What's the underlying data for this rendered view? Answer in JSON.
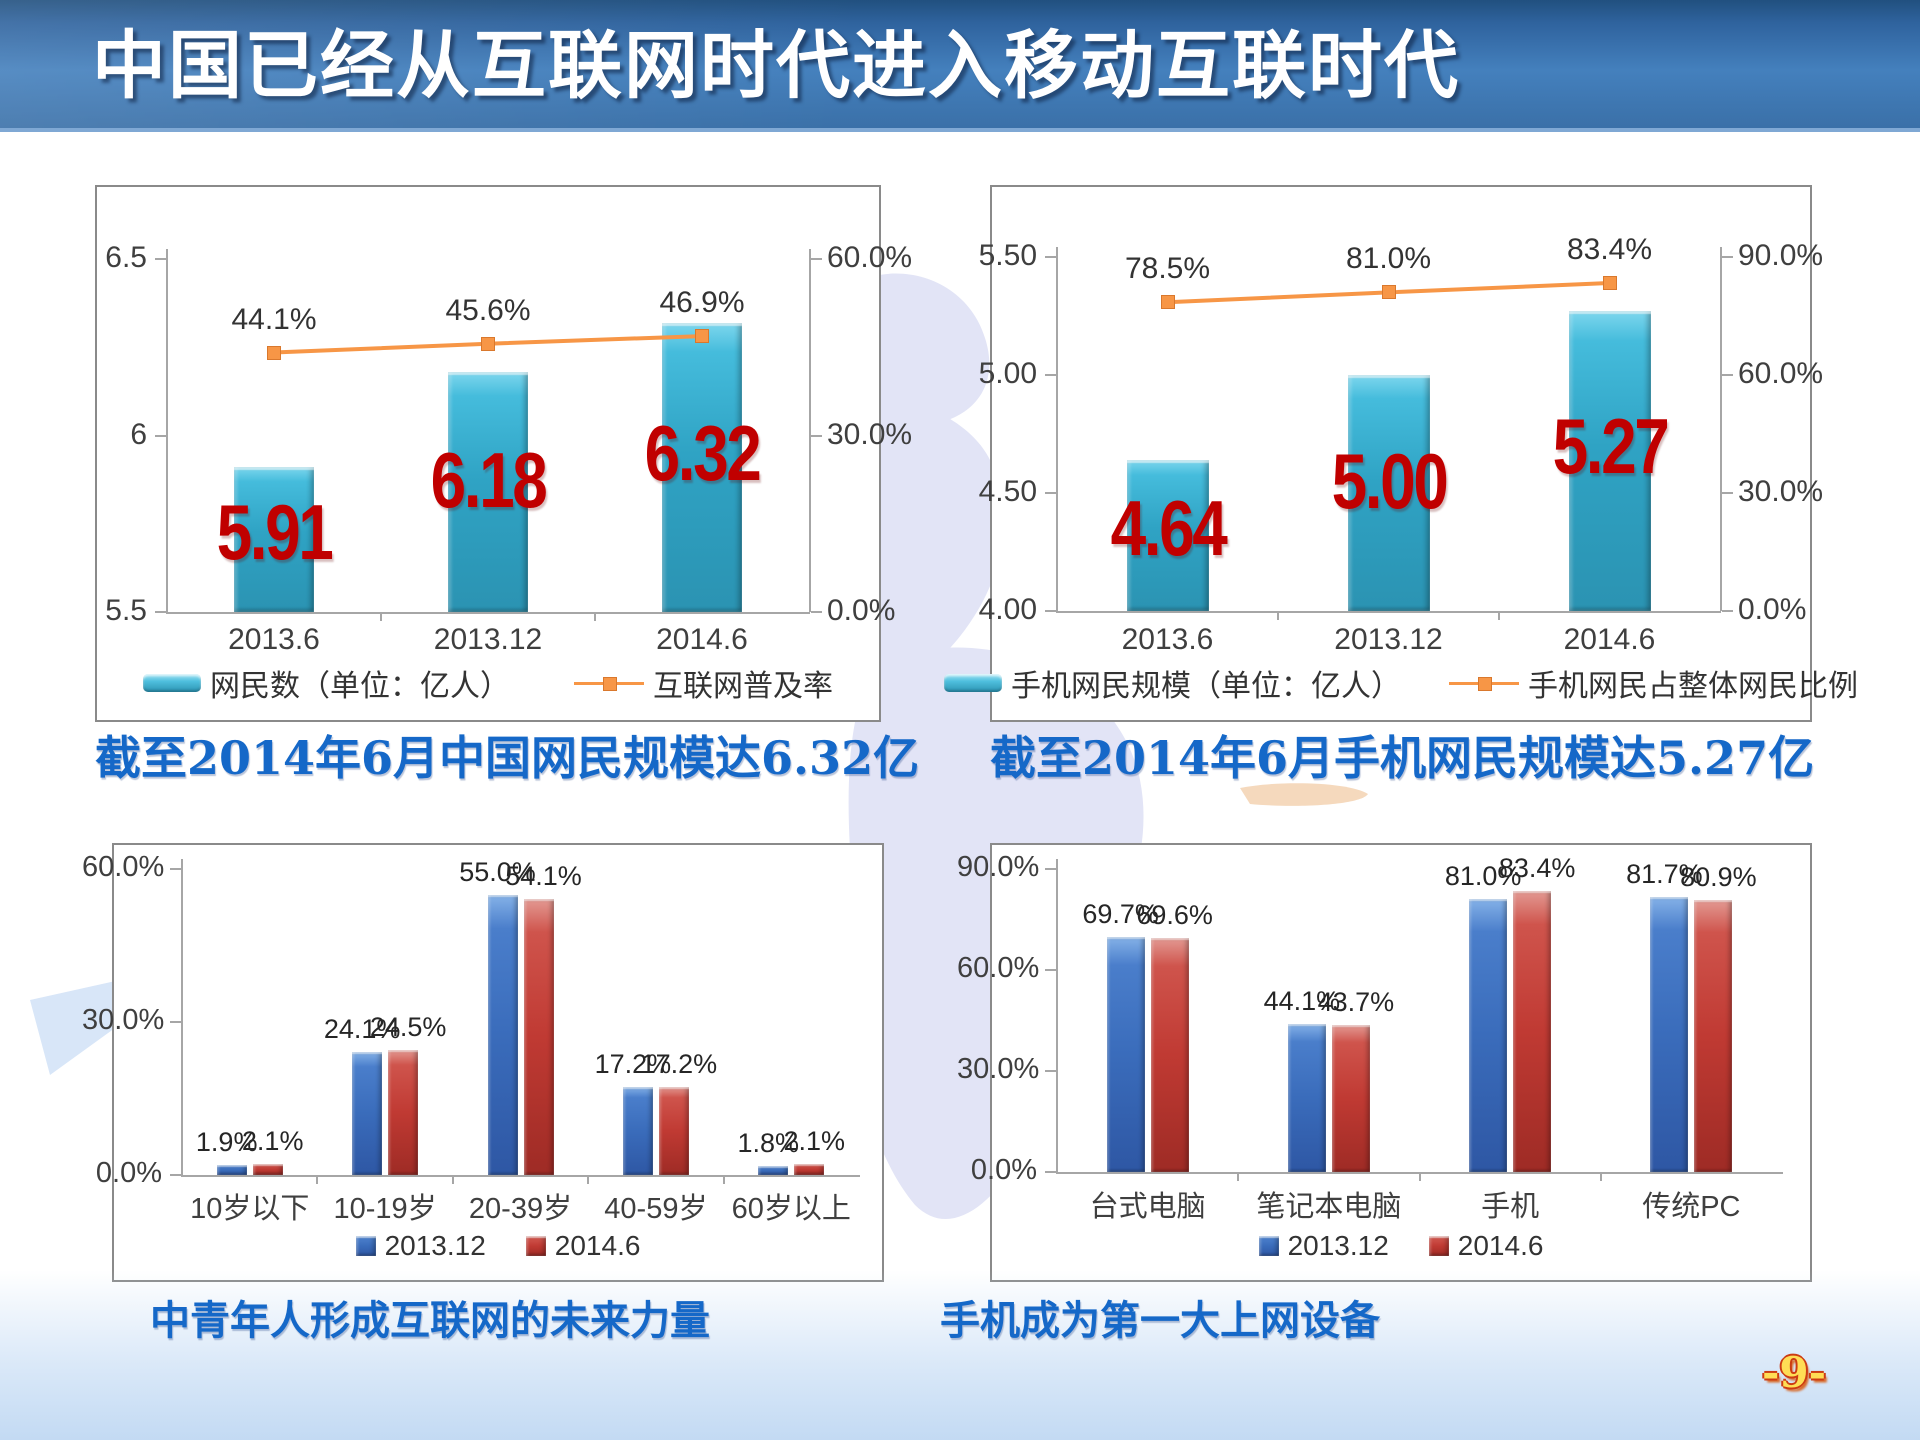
{
  "title_banner": {
    "text": "中国已经从互联网时代进入移动互联时代"
  },
  "page_number": "-9-",
  "colors": {
    "banner_blue": "#3a70a8",
    "teal_bar": "#2fa3c4",
    "orange_line": "#f79646",
    "blue_bar": "#3a6cbb",
    "red_bar": "#c03a33",
    "big_number_red": "#c00000",
    "caption_blue": "#1568c8",
    "page_number_yellow": "#ffdd55"
  },
  "chart_data": [
    {
      "id": "netizens",
      "type": "bar-line",
      "title_caption": "截至2014年6月中国网民规模达6.32亿",
      "categories": [
        "2013.6",
        "2013.12",
        "2014.6"
      ],
      "bar_series": {
        "name": "网民数（单位：亿人）",
        "values": [
          5.91,
          6.18,
          6.32
        ],
        "labels": [
          "5.91",
          "6.18",
          "6.32"
        ]
      },
      "line_series": {
        "name": "互联网普及率",
        "values": [
          44.1,
          45.6,
          46.9
        ],
        "labels": [
          "44.1%",
          "45.6%",
          "46.9%"
        ]
      },
      "left_axis": {
        "min": 5.5,
        "max": 6.5,
        "ticks": [
          [
            "6.5",
            6.5
          ],
          [
            "6",
            6.0
          ],
          [
            "5.5",
            5.5
          ]
        ]
      },
      "right_axis": {
        "min": 0,
        "max": 60,
        "ticks": [
          [
            "60.0%",
            60
          ],
          [
            "30.0%",
            30
          ],
          [
            "0.0%",
            0
          ]
        ]
      }
    },
    {
      "id": "mobile",
      "type": "bar-line",
      "title_caption": "截至2014年6月手机网民规模达5.27亿",
      "categories": [
        "2013.6",
        "2013.12",
        "2014.6"
      ],
      "bar_series": {
        "name": "手机网民规模（单位：亿人）",
        "values": [
          4.64,
          5.0,
          5.27
        ],
        "labels": [
          "4.64",
          "5.00",
          "5.27"
        ]
      },
      "line_series": {
        "name": "手机网民占整体网民比例",
        "values": [
          78.5,
          81.0,
          83.4
        ],
        "labels": [
          "78.5%",
          "81.0%",
          "83.4%"
        ]
      },
      "left_axis": {
        "min": 4.0,
        "max": 5.5,
        "ticks": [
          [
            "5.50",
            5.5
          ],
          [
            "5.00",
            5.0
          ],
          [
            "4.50",
            4.5
          ],
          [
            "4.00",
            4.0
          ]
        ]
      },
      "right_axis": {
        "min": 0,
        "max": 90,
        "ticks": [
          [
            "90.0%",
            90
          ],
          [
            "60.0%",
            60
          ],
          [
            "30.0%",
            30
          ],
          [
            "0.0%",
            0
          ]
        ]
      }
    },
    {
      "id": "age",
      "type": "grouped-bar",
      "title_caption": "中青年人形成互联网的未来力量",
      "categories": [
        "10岁以下",
        "10-19岁",
        "20-39岁",
        "40-59岁",
        "60岁以上"
      ],
      "series": [
        {
          "name": "2013.12",
          "color": "blue",
          "values": [
            1.9,
            24.1,
            55.0,
            17.2,
            1.8
          ],
          "labels": [
            "1.9%",
            "24.1%",
            "55.0%",
            "17.2%",
            "1.8%"
          ]
        },
        {
          "name": "2014.6",
          "color": "red",
          "values": [
            2.1,
            24.5,
            54.1,
            17.2,
            2.1
          ],
          "labels": [
            "2.1%",
            "24.5%",
            "54.1%",
            "17.2%",
            "2.1%"
          ]
        }
      ],
      "left_axis": {
        "min": 0,
        "max": 60,
        "ticks": [
          [
            "60.0%",
            60
          ],
          [
            "30.0%",
            30
          ],
          [
            "0.0%",
            0
          ]
        ]
      }
    },
    {
      "id": "devices",
      "type": "grouped-bar",
      "title_caption": "手机成为第一大上网设备",
      "categories": [
        "台式电脑",
        "笔记本电脑",
        "手机",
        "传统PC"
      ],
      "series": [
        {
          "name": "2013.12",
          "color": "blue",
          "values": [
            69.7,
            44.1,
            81.0,
            81.7
          ],
          "labels": [
            "69.7%",
            "44.1%",
            "81.0%",
            "81.7%"
          ]
        },
        {
          "name": "2014.6",
          "color": "red",
          "values": [
            69.6,
            43.7,
            83.4,
            80.9
          ],
          "labels": [
            "69.6%",
            "43.7%",
            "83.4%",
            "80.9%"
          ]
        }
      ],
      "left_axis": {
        "min": 0,
        "max": 90,
        "ticks": [
          [
            "90.0%",
            90
          ],
          [
            "60.0%",
            60
          ],
          [
            "30.0%",
            30
          ],
          [
            "0.0%",
            0
          ]
        ]
      }
    }
  ]
}
